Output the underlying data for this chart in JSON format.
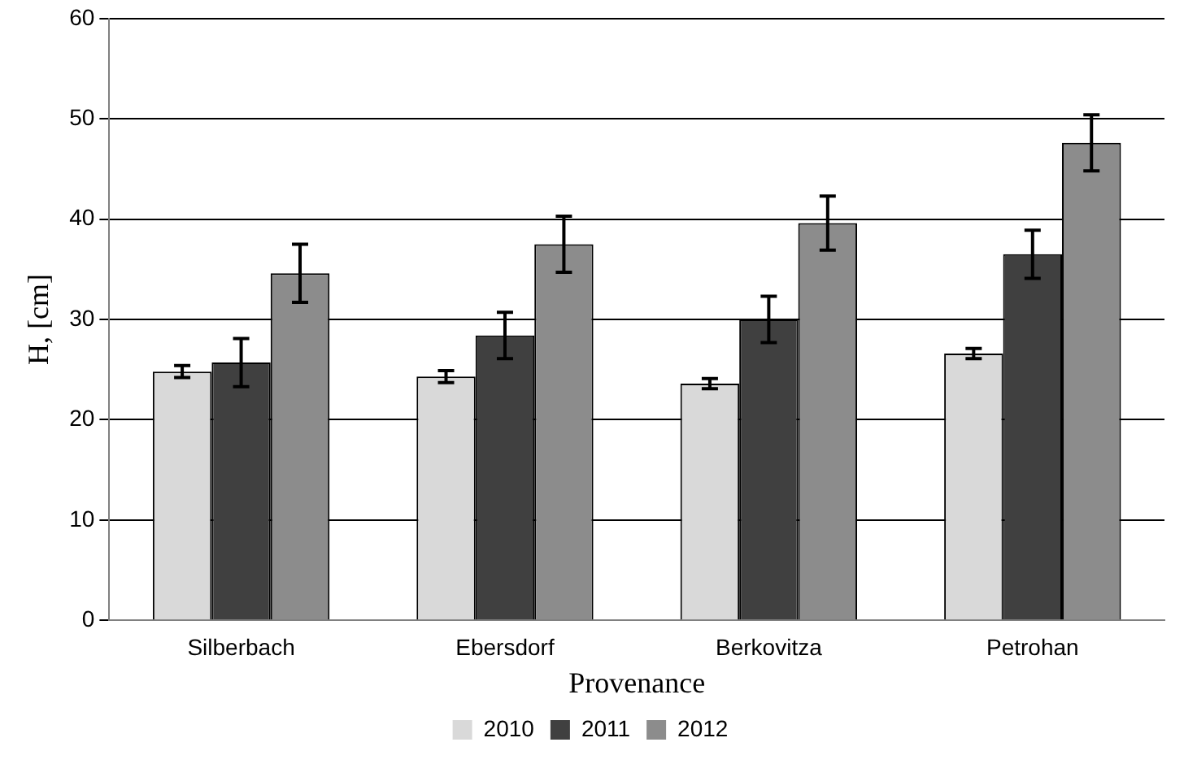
{
  "chart_data": {
    "type": "bar",
    "xlabel": "Provenance",
    "ylabel": "H, [cm]",
    "categories": [
      "Silberbach",
      "Ebersdorf",
      "Berkovitza",
      "Petrohan"
    ],
    "series": [
      {
        "name": "2010",
        "color": "#d9d9d9",
        "values": [
          24.8,
          24.3,
          23.6,
          26.6
        ],
        "errors": [
          0.6,
          0.6,
          0.5,
          0.5
        ]
      },
      {
        "name": "2011",
        "color": "#404040",
        "values": [
          25.7,
          28.4,
          30.0,
          36.5
        ],
        "errors": [
          2.4,
          2.3,
          2.3,
          2.4
        ]
      },
      {
        "name": "2012",
        "color": "#8c8c8c",
        "values": [
          34.6,
          37.5,
          39.6,
          47.6
        ],
        "errors": [
          2.9,
          2.8,
          2.7,
          2.8
        ]
      }
    ],
    "ylim": [
      0,
      60
    ],
    "yticks": [
      0,
      10,
      20,
      30,
      40,
      50,
      60
    ],
    "grid": "y",
    "legend": "bottom"
  }
}
